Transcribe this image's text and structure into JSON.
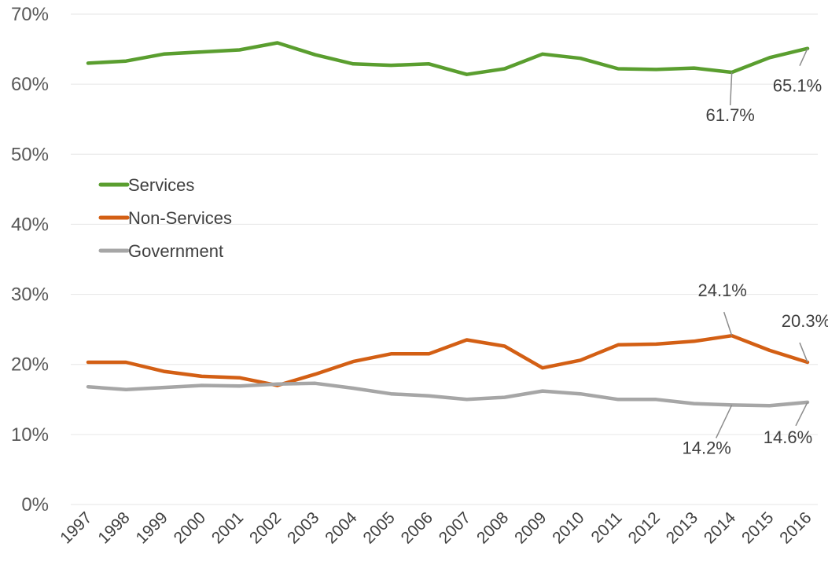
{
  "chart_data": {
    "type": "line",
    "title": "",
    "xlabel": "",
    "ylabel": "",
    "x": [
      "1997",
      "1998",
      "1999",
      "2000",
      "2001",
      "2002",
      "2003",
      "2004",
      "2005",
      "2006",
      "2007",
      "2008",
      "2009",
      "2010",
      "2011",
      "2012",
      "2013",
      "2014",
      "2015",
      "2016"
    ],
    "ylim": [
      0,
      70
    ],
    "y_ticks": [
      0,
      10,
      20,
      30,
      40,
      50,
      60,
      70
    ],
    "y_tick_format": "%",
    "grid": true,
    "legend_position": "left-middle",
    "series": [
      {
        "name": "Services",
        "color": "#5a9e2f",
        "values": [
          63.0,
          63.3,
          64.3,
          64.6,
          64.9,
          65.9,
          64.2,
          62.9,
          62.7,
          62.9,
          61.4,
          62.2,
          64.3,
          63.7,
          62.2,
          62.1,
          62.3,
          61.7,
          63.8,
          65.1
        ]
      },
      {
        "name": "Non-Services",
        "color": "#d35f14",
        "values": [
          20.3,
          20.3,
          19.0,
          18.3,
          18.1,
          17.0,
          18.6,
          20.4,
          21.5,
          21.5,
          23.5,
          22.6,
          19.5,
          20.6,
          22.8,
          22.9,
          23.3,
          24.1,
          22.0,
          20.3
        ]
      },
      {
        "name": "Government",
        "color": "#a6a6a6",
        "values": [
          16.8,
          16.4,
          16.7,
          17.0,
          16.9,
          17.2,
          17.3,
          16.6,
          15.8,
          15.5,
          15.0,
          15.3,
          16.2,
          15.8,
          15.0,
          15.0,
          14.4,
          14.2,
          14.1,
          14.6
        ]
      }
    ],
    "annotations": [
      {
        "series": "Services",
        "x": "2014",
        "text": "61.7%"
      },
      {
        "series": "Services",
        "x": "2016",
        "text": "65.1%"
      },
      {
        "series": "Non-Services",
        "x": "2014",
        "text": "24.1%"
      },
      {
        "series": "Non-Services",
        "x": "2016",
        "text": "20.3%"
      },
      {
        "series": "Government",
        "x": "2014",
        "text": "14.2%"
      },
      {
        "series": "Government",
        "x": "2016",
        "text": "14.6%"
      }
    ]
  }
}
